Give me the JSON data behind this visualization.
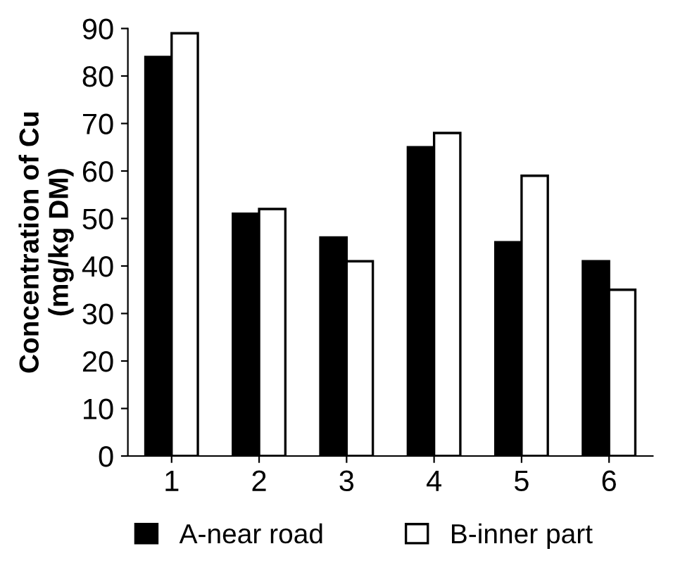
{
  "chart_data": {
    "type": "bar",
    "ylabel": "Concentration of Cu\n(mg/kg DM)",
    "categories": [
      "1",
      "2",
      "3",
      "4",
      "5",
      "6"
    ],
    "series": [
      {
        "name": "A-near road",
        "color": "#000000",
        "values": [
          84,
          51,
          46,
          65,
          45,
          41
        ]
      },
      {
        "name": "B-inner part",
        "color": "#ffffff",
        "values": [
          89,
          52,
          41,
          68,
          59,
          35
        ]
      }
    ],
    "ylim": [
      0,
      90
    ],
    "yticks": [
      0,
      10,
      20,
      30,
      40,
      50,
      60,
      70,
      80,
      90
    ],
    "grid": false,
    "legend": "bottom"
  }
}
